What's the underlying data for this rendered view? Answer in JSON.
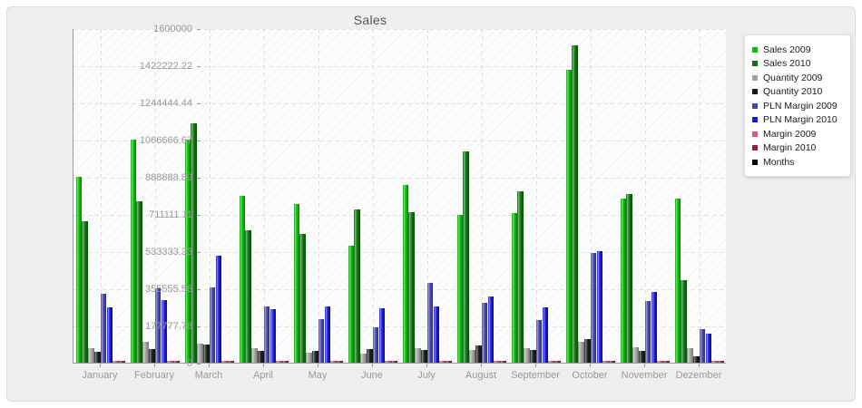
{
  "title": "Sales",
  "chart_data": {
    "type": "bar",
    "title": "Sales",
    "xlabel": "",
    "ylabel": "",
    "ylim": [
      0,
      1600000
    ],
    "grid": "dashed-both",
    "legend_position": "right",
    "y_tick_labels": [
      "1600000",
      "1422222.22",
      "1244444.44",
      "1066666.67",
      "888888.89",
      "711111.11",
      "533333.33",
      "355555.56",
      "177777.78",
      "0"
    ],
    "y_tick_values": [
      1600000,
      1422222.22,
      1244444.44,
      1066666.67,
      888888.89,
      711111.11,
      533333.33,
      355555.56,
      177777.78,
      0
    ],
    "categories": [
      "January",
      "February",
      "March",
      "April",
      "May",
      "June",
      "July",
      "August",
      "September",
      "October",
      "November",
      "Dezember"
    ],
    "series": [
      {
        "name": "Sales 2009",
        "color": "#00c000",
        "values": [
          890000,
          1065000,
          1067000,
          798000,
          757000,
          560000,
          852000,
          705000,
          717000,
          1400000,
          783000,
          785000
        ]
      },
      {
        "name": "Sales 2010",
        "color": "#0d720d",
        "values": [
          678000,
          770000,
          1144000,
          631000,
          617000,
          733000,
          722000,
          1011000,
          819000,
          1517000,
          805000,
          394000
        ]
      },
      {
        "name": "Quantity 2009",
        "color": "#a3a3a3",
        "values": [
          68000,
          101000,
          91000,
          68000,
          48000,
          45000,
          68000,
          62000,
          68000,
          100000,
          72000,
          68000
        ]
      },
      {
        "name": "Quantity 2010",
        "color": "#1a1a1a",
        "values": [
          51000,
          65000,
          87000,
          58000,
          58000,
          65000,
          62000,
          82000,
          62000,
          113000,
          58000,
          29000
        ]
      },
      {
        "name": "PLN Margin 2009",
        "color": "#4444b0",
        "values": [
          330000,
          354000,
          360000,
          267000,
          207000,
          168000,
          380000,
          285000,
          202000,
          523000,
          296000,
          162000
        ]
      },
      {
        "name": "PLN Margin 2010",
        "color": "#1515dd",
        "values": [
          263000,
          299000,
          513000,
          256000,
          270000,
          260000,
          270000,
          318000,
          264000,
          535000,
          340000,
          140000
        ]
      },
      {
        "name": "Margin 2009",
        "color": "#d9548a",
        "values": [
          7000,
          7000,
          7000,
          7000,
          7000,
          7000,
          7000,
          7000,
          7000,
          8000,
          7000,
          7000
        ]
      },
      {
        "name": "Margin 2010",
        "color": "#8c2150",
        "values": [
          9000,
          9000,
          9000,
          9000,
          9000,
          9000,
          9000,
          9000,
          9000,
          10000,
          9000,
          9000
        ]
      },
      {
        "name": "Months",
        "color": "#000000",
        "values": [
          0,
          0,
          0,
          0,
          0,
          0,
          0,
          0,
          0,
          0,
          0,
          0
        ]
      }
    ]
  },
  "legend": {
    "items": [
      "Sales 2009",
      "Sales 2010",
      "Quantity 2009",
      "Quantity 2010",
      "PLN Margin 2009",
      "PLN Margin 2010",
      "Margin 2009",
      "Margin 2010",
      "Months"
    ]
  }
}
